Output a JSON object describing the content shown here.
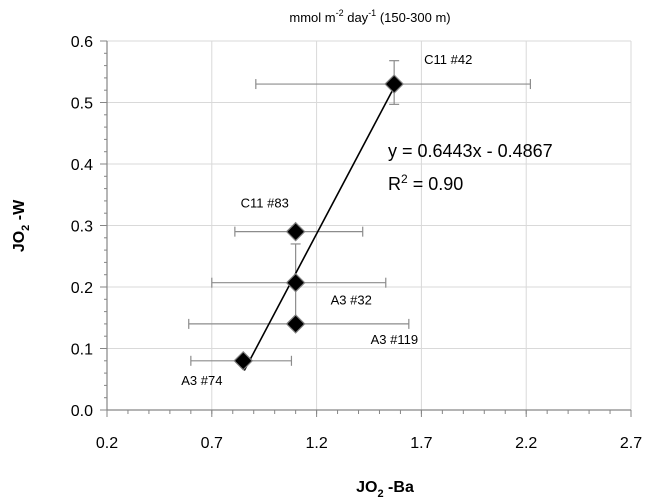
{
  "chart_data": {
    "type": "scatter",
    "title_main": "mmol m",
    "title_sup1": "-2",
    "title_mid": " day",
    "title_sup2": "-1",
    "title_end": " (150-300 m)",
    "xlabel_main": "JO",
    "xlabel_sub": "2",
    "xlabel_end": " -Ba",
    "ylabel_main": "JO",
    "ylabel_sub": "2",
    "ylabel_end": " -W",
    "xlim": [
      0.2,
      2.7
    ],
    "ylim": [
      0.0,
      0.6
    ],
    "x_ticks": [
      "0.2",
      "0.7",
      "1.2",
      "1.7",
      "2.2",
      "2.7"
    ],
    "y_ticks": [
      "0.0",
      "0.1",
      "0.2",
      "0.3",
      "0.4",
      "0.5",
      "0.6"
    ],
    "grid": true,
    "points": [
      {
        "label": "C11 #42",
        "x": 1.57,
        "y": 0.53,
        "xerr_low": 0.91,
        "xerr_high": 2.22,
        "yerr_low": 0.497,
        "yerr_high": 0.568
      },
      {
        "label": "C11 #83",
        "x": 1.1,
        "y": 0.29,
        "xerr_low": 0.81,
        "xerr_high": 1.42,
        "yerr_low": null,
        "yerr_high": null
      },
      {
        "label": "A3 #32",
        "x": 1.1,
        "y": 0.207,
        "xerr_low": 0.7,
        "xerr_high": 1.53,
        "yerr_low": 0.14,
        "yerr_high": 0.27
      },
      {
        "label": "A3 #119",
        "x": 1.1,
        "y": 0.14,
        "xerr_low": 0.59,
        "xerr_high": 1.64,
        "yerr_low": null,
        "yerr_high": null
      },
      {
        "label": "A3 #74",
        "x": 0.85,
        "y": 0.08,
        "xerr_low": 0.6,
        "xerr_high": 1.08,
        "yerr_low": null,
        "yerr_high": null
      }
    ],
    "trendline": {
      "slope": 0.6443,
      "intercept": -0.4867,
      "x_start": 0.855,
      "x_end": 1.575
    },
    "equation": "y = 0.6443x - 0.4867",
    "r2_main": "R",
    "r2_sup": "2",
    "r2_end": " = 0.90"
  }
}
